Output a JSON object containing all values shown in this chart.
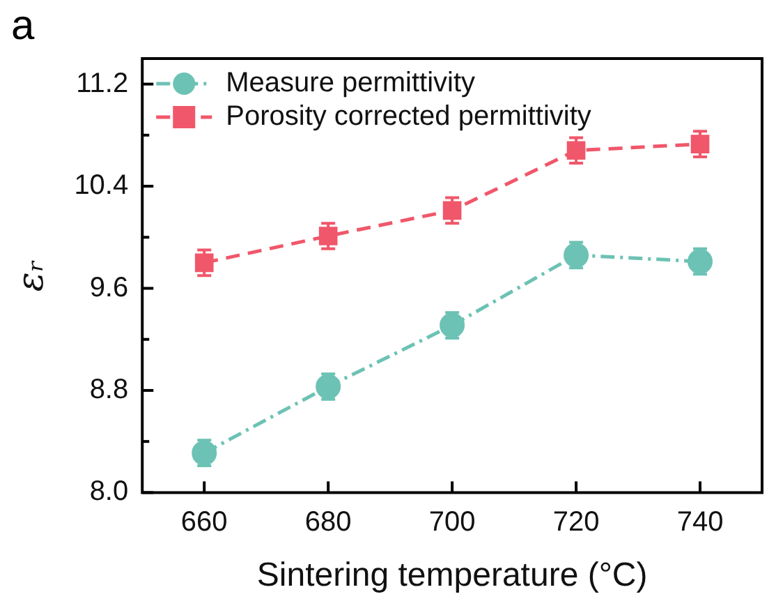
{
  "chart_data": {
    "type": "line",
    "annotations": [
      "a"
    ],
    "xlabel": "Sintering temperature (°C)",
    "ylabel": "εᵣ",
    "x": [
      660,
      680,
      700,
      720,
      740
    ],
    "xlim": [
      650,
      750
    ],
    "xticks": [
      660,
      680,
      700,
      720,
      740
    ],
    "ylim": [
      8.0,
      11.4
    ],
    "yticks": [
      {
        "value": 8.0,
        "label": "8.0"
      },
      {
        "value": 8.4,
        "label": null
      },
      8.8,
      {
        "value": 9.2,
        "label": null
      },
      9.6,
      {
        "value": 10.0,
        "label": null
      },
      10.4,
      {
        "value": 10.8,
        "label": null
      },
      11.2
    ],
    "series": [
      {
        "name": "Measure permittivity",
        "color": "#6cc2b4",
        "values": [
          8.31,
          8.83,
          9.31,
          9.86,
          9.81
        ],
        "errors": [
          0.1,
          0.1,
          0.1,
          0.1,
          0.1
        ],
        "marker": "circle",
        "line_style": "dashdot"
      },
      {
        "name": "Porosity corrected permittivity",
        "color": "#f0576a",
        "values": [
          9.8,
          10.01,
          10.21,
          10.68,
          10.73
        ],
        "errors": [
          0.1,
          0.1,
          0.1,
          0.1,
          0.1
        ],
        "marker": "square",
        "line_style": "dashed"
      }
    ],
    "grid": false,
    "legend": "top left"
  }
}
